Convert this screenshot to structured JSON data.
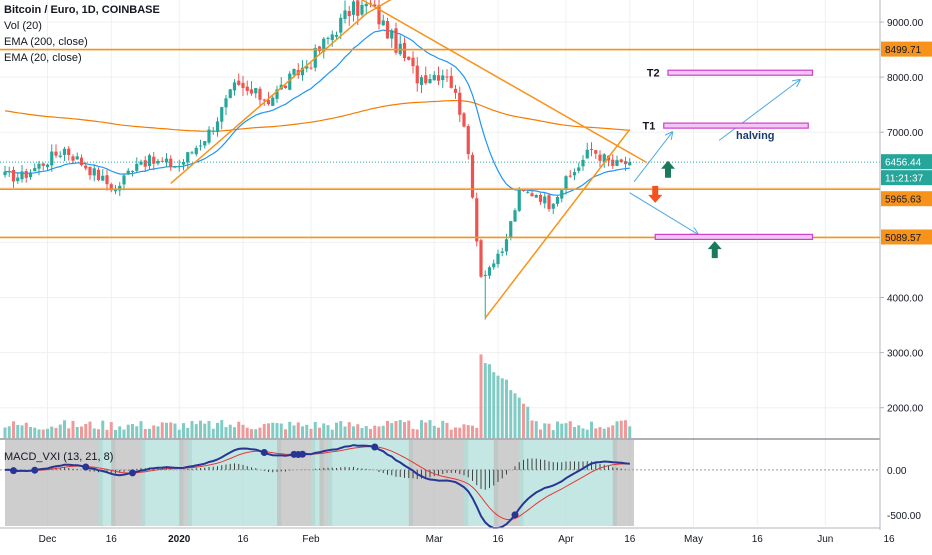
{
  "legend": {
    "title": "Bitcoin / Euro, 1D, COINBASE",
    "vol": "Vol (20)",
    "ema200": "EMA (200, close)",
    "ema20": "EMA (20, close)",
    "macd": "MACD_VXI (13, 21, 8)"
  },
  "colors": {
    "up": "#26a69a",
    "down": "#ef5350",
    "ema20": "#2196f3",
    "ema200": "#f57c00",
    "trend": "#f7931a",
    "target": "#cc40cc",
    "macd": "#283593",
    "signal": "#e53935",
    "shade_green": "#b2dfdb",
    "shade_gray": "#bdbdbd",
    "arrow_up": "#1b7a5c",
    "arrow_down": "#f4511e"
  },
  "chart_data": [
    {
      "type": "candlestick",
      "title": "Bitcoin / Euro, 1D, COINBASE",
      "ylim": [
        1450,
        9400
      ],
      "y_ticks": [
        "9000.00",
        "8000.00",
        "7000.00",
        "4000.00",
        "3000.00",
        "2000.00"
      ],
      "x_ticks": [
        "Dec",
        "16",
        "2020",
        "16",
        "Feb",
        "Mar",
        "16",
        "Apr",
        "16",
        "May",
        "16",
        "Jun",
        "16"
      ],
      "price_labels": [
        {
          "value": "8499.71",
          "kind": "level"
        },
        {
          "value": "6456.44",
          "kind": "last"
        },
        {
          "value": "11:21:37",
          "kind": "countdown"
        },
        {
          "value": "5965.63",
          "kind": "level"
        },
        {
          "value": "5089.57",
          "kind": "level"
        }
      ],
      "horizontal_levels": [
        8499.71,
        5965.63,
        5089.57
      ],
      "annotations": [
        "T2",
        "T1",
        "halving"
      ],
      "ohlc_anchor_closes": [
        {
          "date": "2019-11-25",
          "close": 6200
        },
        {
          "date": "2019-12-05",
          "close": 6700
        },
        {
          "date": "2019-12-17",
          "close": 5950
        },
        {
          "date": "2019-12-22",
          "close": 6500
        },
        {
          "date": "2020-01-01",
          "close": 6400
        },
        {
          "date": "2020-01-08",
          "close": 7000
        },
        {
          "date": "2020-01-14",
          "close": 7800
        },
        {
          "date": "2020-01-22",
          "close": 7600
        },
        {
          "date": "2020-02-01",
          "close": 8300
        },
        {
          "date": "2020-02-10",
          "close": 9200
        },
        {
          "date": "2020-02-15",
          "close": 9300
        },
        {
          "date": "2020-02-20",
          "close": 8700
        },
        {
          "date": "2020-02-26",
          "close": 8000
        },
        {
          "date": "2020-03-04",
          "close": 8100
        },
        {
          "date": "2020-03-08",
          "close": 7200
        },
        {
          "date": "2020-03-12",
          "close": 4400
        },
        {
          "date": "2020-03-17",
          "close": 4800
        },
        {
          "date": "2020-03-21",
          "close": 5900
        },
        {
          "date": "2020-03-25",
          "close": 5900
        },
        {
          "date": "2020-03-28",
          "close": 5700
        },
        {
          "date": "2020-04-01",
          "close": 6100
        },
        {
          "date": "2020-04-07",
          "close": 6700
        },
        {
          "date": "2020-04-12",
          "close": 6400
        },
        {
          "date": "2020-04-16",
          "close": 6456
        }
      ]
    },
    {
      "type": "bar",
      "title": "Vol (20)"
    },
    {
      "type": "line",
      "title": "MACD_VXI (13, 21, 8)",
      "ylim": [
        -620,
        330
      ],
      "y_ticks": [
        "0.00",
        "-500.00"
      ]
    }
  ]
}
